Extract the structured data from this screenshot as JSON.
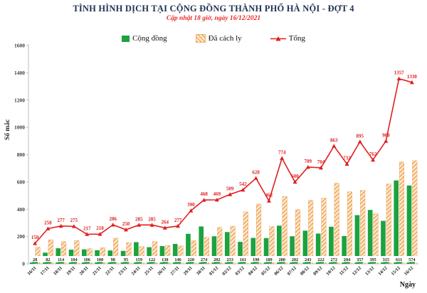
{
  "header": {
    "title": "TÌNH HÌNH DỊCH TẠI CỘNG ĐỒNG THÀNH PHỐ HÀ NỘI - ĐỢT 4",
    "subtitle": "Cập nhật 18 giờ, ngày 16/12/2021"
  },
  "legend": [
    {
      "label": "Cộng đồng",
      "type": "bar-solid",
      "color": "#1CA23E"
    },
    {
      "label": "Đã cách ly",
      "type": "bar-hatch",
      "color": "#F2A75C"
    },
    {
      "label": "Tổng",
      "type": "line-marker",
      "color": "#E01F1F"
    }
  ],
  "chart_data": {
    "type": "bar",
    "subtype": "grouped bars with line overlay",
    "title": "TÌNH HÌNH DỊCH TẠI CỘNG ĐỒNG THÀNH PHỐ HÀ NỘI - ĐỢT 4",
    "subtitle": "Cập nhật 18 giờ, ngày 16/12/2021",
    "xlabel": "Ngày",
    "ylabel": "Số mắc",
    "ylim": [
      0,
      1600
    ],
    "ytick_step": 200,
    "grid": false,
    "legend_position": "top",
    "categories": [
      "16/11",
      "17/11",
      "18/11",
      "19/11",
      "20/11",
      "21/11",
      "22/11",
      "23/11",
      "24/11",
      "25/11",
      "26/11",
      "27/11",
      "29/11",
      "30/11",
      "01/12",
      "02/12",
      "03/12",
      "04/12",
      "05/12",
      "06/12",
      "07/12",
      "08/12",
      "09/12",
      "10/12",
      "11/12",
      "12/12",
      "13/12",
      "14/12",
      "15/12",
      "16/12"
    ],
    "series": [
      {
        "name": "Cộng đồng",
        "type": "bar",
        "color": "#1CA23E",
        "values": [
          28,
          82,
          114,
          104,
          106,
          100,
          98,
          95,
          159,
          122,
          130,
          146,
          220,
          274,
          202,
          233,
          161,
          190,
          189,
          280,
          202,
          243,
          222,
          272,
          204,
          357,
          395,
          315,
          611,
          574
        ],
        "labels_shown": "at bar base"
      },
      {
        "name": "Đã cách ly",
        "type": "bar",
        "color": "#F2A75C",
        "pattern": "diagonal-hatch",
        "values": [
          122,
          176,
          163,
          171,
          111,
          118,
          188,
          155,
          126,
          163,
          134,
          131,
          170,
          194,
          267,
          276,
          381,
          438,
          273,
          494,
          398,
          466,
          482,
          591,
          528,
          538,
          367,
          585,
          746,
          756
        ],
        "labels_shown": "none"
      },
      {
        "name": "Tổng",
        "type": "line",
        "color": "#E01F1F",
        "marker": "triangle",
        "values": [
          150,
          258,
          277,
          275,
          217,
          218,
          286,
          250,
          285,
          285,
          264,
          277,
          390,
          468,
          469,
          509,
          542,
          628,
          462,
          774,
          600,
          709,
          704,
          863,
          732,
          895,
          762,
          900,
          1357,
          1330
        ],
        "labels_shown": "above markers"
      }
    ]
  }
}
